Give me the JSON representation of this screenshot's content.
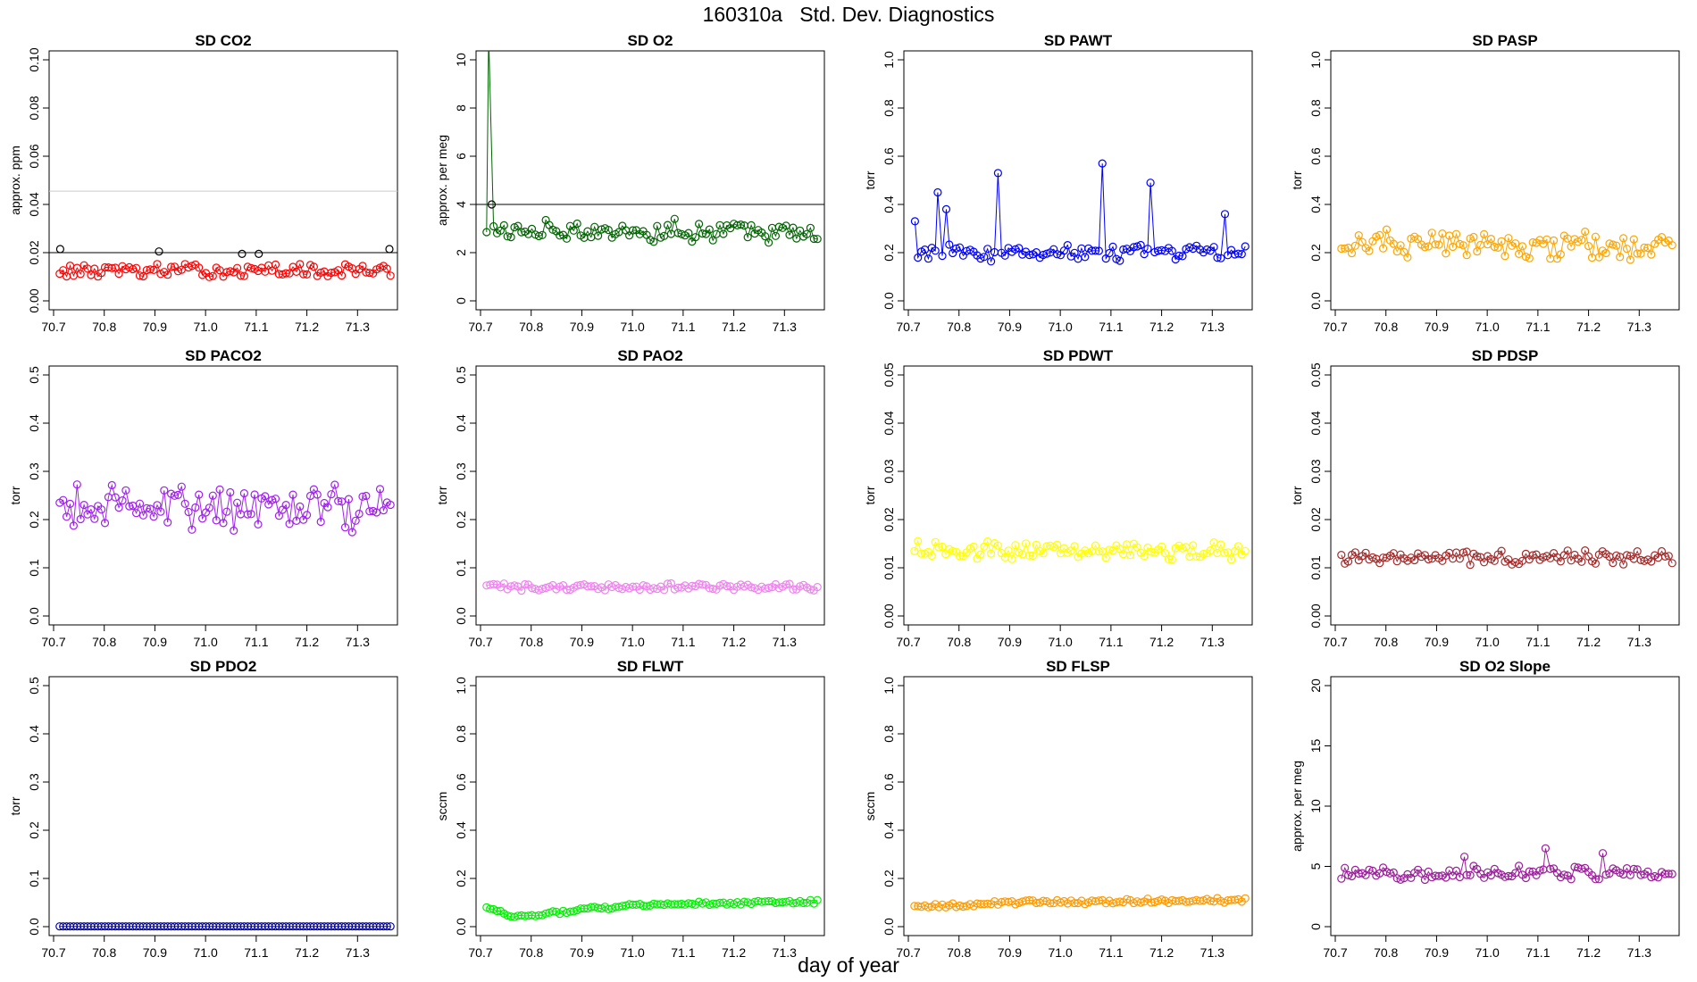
{
  "figure": {
    "title": "160310a   Std. Dev. Diagnostics",
    "xlabel": "day of year"
  },
  "chart_data": [
    {
      "type": "scatter",
      "title": "SD CO2",
      "ylabel": "approx. ppm",
      "color": "#ff0000",
      "xlim": [
        70.7,
        71.37
      ],
      "ylim": [
        0,
        0.1
      ],
      "yticks": [
        "0.00",
        "0.02",
        "0.04",
        "0.06",
        "0.08",
        "0.10"
      ],
      "xticks": [
        "70.7",
        "70.8",
        "70.9",
        "71.0",
        "71.1",
        "71.2",
        "71.3"
      ],
      "base": 0.0125,
      "amp": 0.0022,
      "spikes": [],
      "hlines": [
        {
          "y": 0.02,
          "color": "#000000"
        },
        {
          "y": 0.0455,
          "color": "#cccccc"
        }
      ],
      "flagged": [
        {
          "x": 70.713,
          "y": 0.0215
        },
        {
          "x": 70.908,
          "y": 0.0205
        },
        {
          "x": 71.072,
          "y": 0.0195
        },
        {
          "x": 71.105,
          "y": 0.0195
        },
        {
          "x": 71.363,
          "y": 0.0215
        }
      ]
    },
    {
      "type": "scatter",
      "title": "SD O2",
      "ylabel": "approx. per meg",
      "color": "#006400",
      "xlim": [
        70.7,
        71.37
      ],
      "ylim": [
        0,
        10
      ],
      "yticks": [
        "0",
        "2",
        "4",
        "6",
        "8",
        "10"
      ],
      "xticks": [
        "70.7",
        "70.8",
        "70.9",
        "71.0",
        "71.1",
        "71.2",
        "71.3"
      ],
      "base": 2.9,
      "amp": 0.35,
      "spikes": [
        {
          "x": 70.716,
          "y": 11
        }
      ],
      "hlines": [
        {
          "y": 4,
          "color": "#000000"
        }
      ],
      "flagged": [
        {
          "x": 70.722,
          "y": 4.0
        }
      ]
    },
    {
      "type": "scatter",
      "title": "SD PAWT",
      "ylabel": "torr",
      "color": "#0000ff",
      "xlim": [
        70.7,
        71.37
      ],
      "ylim": [
        0,
        1.0
      ],
      "yticks": [
        "0.0",
        "0.2",
        "0.4",
        "0.6",
        "0.8",
        "1.0"
      ],
      "xticks": [
        "70.7",
        "70.8",
        "70.9",
        "71.0",
        "71.1",
        "71.2",
        "71.3"
      ],
      "base": 0.2,
      "amp": 0.025,
      "spikes": [
        {
          "x": 70.713,
          "y": 0.33
        },
        {
          "x": 70.758,
          "y": 0.45
        },
        {
          "x": 70.775,
          "y": 0.38
        },
        {
          "x": 70.877,
          "y": 0.53
        },
        {
          "x": 71.083,
          "y": 0.57
        },
        {
          "x": 71.178,
          "y": 0.49
        },
        {
          "x": 71.325,
          "y": 0.36
        }
      ],
      "hlines": [],
      "flagged": []
    },
    {
      "type": "scatter",
      "title": "SD PASP",
      "ylabel": "torr",
      "color": "#ffa500",
      "xlim": [
        70.7,
        71.37
      ],
      "ylim": [
        0,
        1.0
      ],
      "yticks": [
        "0.0",
        "0.2",
        "0.4",
        "0.6",
        "0.8",
        "1.0"
      ],
      "xticks": [
        "70.7",
        "70.8",
        "70.9",
        "71.0",
        "71.1",
        "71.2",
        "71.3"
      ],
      "base": 0.23,
      "amp": 0.045,
      "spikes": [],
      "hlines": [],
      "flagged": []
    },
    {
      "type": "scatter",
      "title": "SD PACO2",
      "ylabel": "torr",
      "color": "#a020f0",
      "xlim": [
        70.7,
        71.37
      ],
      "ylim": [
        0,
        0.5
      ],
      "yticks": [
        "0.0",
        "0.1",
        "0.2",
        "0.3",
        "0.4",
        "0.5"
      ],
      "xticks": [
        "70.7",
        "70.8",
        "70.9",
        "71.0",
        "71.1",
        "71.2",
        "71.3"
      ],
      "base": 0.23,
      "amp": 0.04,
      "spikes": [],
      "hlines": [],
      "flagged": []
    },
    {
      "type": "scatter",
      "title": "SD PAO2",
      "ylabel": "torr",
      "color": "#ee82ee",
      "xlim": [
        70.7,
        71.37
      ],
      "ylim": [
        0,
        0.5
      ],
      "yticks": [
        "0.0",
        "0.1",
        "0.2",
        "0.3",
        "0.4",
        "0.5"
      ],
      "xticks": [
        "70.7",
        "70.8",
        "70.9",
        "71.0",
        "71.1",
        "71.2",
        "71.3"
      ],
      "base": 0.06,
      "amp": 0.006,
      "spikes": [],
      "hlines": [],
      "flagged": []
    },
    {
      "type": "scatter",
      "title": "SD PDWT",
      "ylabel": "torr",
      "color": "#ffff00",
      "xlim": [
        70.7,
        71.37
      ],
      "ylim": [
        0,
        0.05
      ],
      "yticks": [
        "0.00",
        "0.01",
        "0.02",
        "0.03",
        "0.04",
        "0.05"
      ],
      "xticks": [
        "70.7",
        "70.8",
        "70.9",
        "71.0",
        "71.1",
        "71.2",
        "71.3"
      ],
      "base": 0.0135,
      "amp": 0.0015,
      "spikes": [],
      "hlines": [],
      "flagged": []
    },
    {
      "type": "scatter",
      "title": "SD PDSP",
      "ylabel": "torr",
      "color": "#a52a2a",
      "xlim": [
        70.7,
        71.37
      ],
      "ylim": [
        0,
        0.05
      ],
      "yticks": [
        "0.00",
        "0.01",
        "0.02",
        "0.03",
        "0.04",
        "0.05"
      ],
      "xticks": [
        "70.7",
        "70.8",
        "70.9",
        "71.0",
        "71.1",
        "71.2",
        "71.3"
      ],
      "base": 0.0122,
      "amp": 0.0012,
      "spikes": [],
      "hlines": [],
      "flagged": []
    },
    {
      "type": "scatter",
      "title": "SD PDO2",
      "ylabel": "torr",
      "color": "#0000aa",
      "xlim": [
        70.7,
        71.37
      ],
      "ylim": [
        0,
        0.5
      ],
      "yticks": [
        "0.0",
        "0.1",
        "0.2",
        "0.3",
        "0.4",
        "0.5"
      ],
      "xticks": [
        "70.7",
        "70.8",
        "70.9",
        "71.0",
        "71.1",
        "71.2",
        "71.3"
      ],
      "base": 0.0,
      "amp": 0.0,
      "spikes": [],
      "hlines": [],
      "flagged": []
    },
    {
      "type": "scatter",
      "title": "SD FLWT",
      "ylabel": "sccm",
      "color": "#00ee00",
      "xlim": [
        70.7,
        71.37
      ],
      "ylim": [
        0,
        1.0
      ],
      "yticks": [
        "0.0",
        "0.2",
        "0.4",
        "0.6",
        "0.8",
        "1.0"
      ],
      "xticks": [
        "70.7",
        "70.8",
        "70.9",
        "71.0",
        "71.1",
        "71.2",
        "71.3"
      ],
      "trend": [
        [
          70.71,
          0.08
        ],
        [
          70.77,
          0.04
        ],
        [
          70.9,
          0.07
        ],
        [
          71.0,
          0.09
        ],
        [
          71.37,
          0.105
        ]
      ],
      "amp": 0.006,
      "spikes": [],
      "hlines": [],
      "flagged": []
    },
    {
      "type": "scatter",
      "title": "SD FLSP",
      "ylabel": "sccm",
      "color": "#ff9900",
      "xlim": [
        70.7,
        71.37
      ],
      "ylim": [
        0,
        1.0
      ],
      "yticks": [
        "0.0",
        "0.2",
        "0.4",
        "0.6",
        "0.8",
        "1.0"
      ],
      "xticks": [
        "70.7",
        "70.8",
        "70.9",
        "71.0",
        "71.1",
        "71.2",
        "71.3"
      ],
      "trend": [
        [
          70.71,
          0.08
        ],
        [
          70.9,
          0.1
        ],
        [
          71.37,
          0.11
        ]
      ],
      "amp": 0.008,
      "spikes": [],
      "hlines": [],
      "flagged": []
    },
    {
      "type": "scatter",
      "title": "SD O2 Slope",
      "ylabel": "approx. per meg",
      "color": "#9c1c9c",
      "xlim": [
        70.7,
        71.37
      ],
      "ylim": [
        0,
        20
      ],
      "yticks": [
        "0",
        "5",
        "10",
        "15",
        "20"
      ],
      "xticks": [
        "70.7",
        "70.8",
        "70.9",
        "71.0",
        "71.1",
        "71.2",
        "71.3"
      ],
      "base": 4.4,
      "amp": 0.45,
      "spikes": [
        {
          "x": 71.115,
          "y": 6.5
        },
        {
          "x": 71.228,
          "y": 6.1
        },
        {
          "x": 70.955,
          "y": 5.8
        }
      ],
      "hlines": [],
      "flagged": []
    }
  ]
}
